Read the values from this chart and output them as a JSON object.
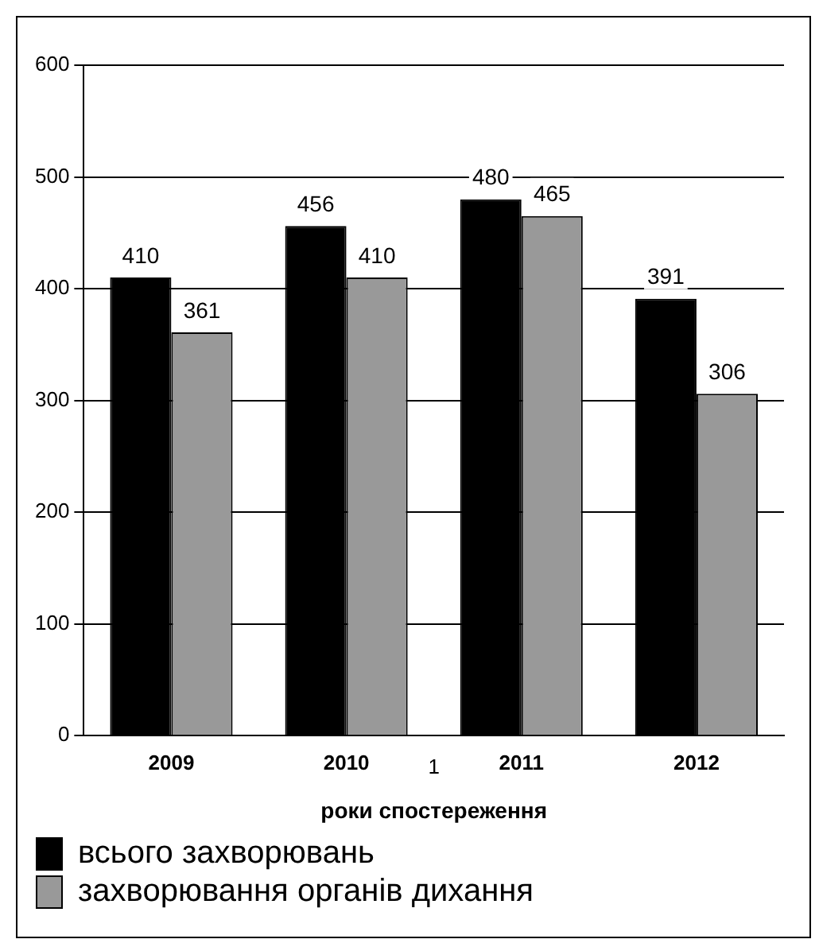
{
  "chart_data": {
    "type": "bar",
    "xlabel": "роки спостереження",
    "categories": [
      "2009",
      "2010",
      "2011",
      "2012"
    ],
    "series": [
      {
        "name": "всього захворювань",
        "color": "#000000",
        "values": [
          410,
          456,
          480,
          391
        ]
      },
      {
        "name": "захворювання органів дихання",
        "color": "#999999",
        "values": [
          361,
          410,
          465,
          306
        ]
      }
    ],
    "ylim": [
      0,
      600
    ],
    "yticks": [
      0,
      100,
      200,
      300,
      400,
      500,
      600
    ],
    "grid": "y",
    "legend": "bottom",
    "data_labels": true,
    "annotations": [
      "1"
    ]
  }
}
